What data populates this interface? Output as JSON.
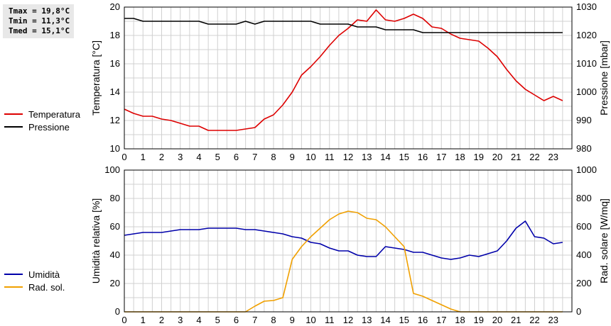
{
  "stats": {
    "tmax": "Tmax = 19,8°C",
    "tmin": "Tmin = 11,3°C",
    "tmed": "Tmed = 15,1°C"
  },
  "chart_data": [
    {
      "type": "line",
      "x_ticks": [
        "0",
        "1",
        "2",
        "3",
        "4",
        "5",
        "6",
        "7",
        "8",
        "9",
        "10",
        "11",
        "12",
        "13",
        "14",
        "15",
        "16",
        "17",
        "18",
        "19",
        "20",
        "21",
        "22",
        "23"
      ],
      "xlim": [
        0,
        24
      ],
      "left_axis": {
        "label": "Temperatura [°C]",
        "ylim": [
          10,
          20
        ],
        "ticks": [
          10,
          12,
          14,
          16,
          18,
          20
        ]
      },
      "right_axis": {
        "label": "Pressione [mbar]",
        "ylim": [
          980,
          1030
        ],
        "ticks": [
          980,
          990,
          1000,
          1010,
          1020,
          1030
        ]
      },
      "grid": true,
      "legend_placement": "left",
      "series": [
        {
          "name": "Temperatura",
          "color": "#dd0000",
          "axis": "left",
          "x": [
            0,
            0.5,
            1,
            1.5,
            2,
            2.5,
            3,
            3.5,
            4,
            4.5,
            5,
            5.5,
            6,
            6.5,
            7,
            7.5,
            8,
            8.5,
            9,
            9.5,
            10,
            10.5,
            11,
            11.5,
            12,
            12.5,
            13,
            13.5,
            14,
            14.5,
            15,
            15.5,
            16,
            16.5,
            17,
            17.5,
            18,
            18.5,
            19,
            19.5,
            20,
            20.5,
            21,
            21.5,
            22,
            22.5,
            23,
            23.5
          ],
          "y": [
            12.8,
            12.5,
            12.3,
            12.3,
            12.1,
            12.0,
            11.8,
            11.6,
            11.6,
            11.3,
            11.3,
            11.3,
            11.3,
            11.4,
            11.5,
            12.1,
            12.4,
            13.1,
            14.0,
            15.2,
            15.8,
            16.5,
            17.3,
            18.0,
            18.5,
            19.1,
            19.0,
            19.8,
            19.1,
            19.0,
            19.2,
            19.5,
            19.2,
            18.6,
            18.5,
            18.1,
            17.8,
            17.7,
            17.6,
            17.1,
            16.5,
            15.6,
            14.8,
            14.2,
            13.8,
            13.4,
            13.7,
            13.4
          ]
        },
        {
          "name": "Pressione",
          "color": "#000000",
          "axis": "right",
          "x": [
            0,
            0.5,
            1,
            1.5,
            2,
            2.5,
            3,
            3.5,
            4,
            4.5,
            5,
            5.5,
            6,
            6.5,
            7,
            7.5,
            8,
            8.5,
            9,
            9.5,
            10,
            10.5,
            11,
            11.5,
            12,
            12.5,
            13,
            13.5,
            14,
            14.5,
            15,
            15.5,
            16,
            16.5,
            17,
            17.5,
            18,
            18.5,
            19,
            19.5,
            20,
            20.5,
            21,
            21.5,
            22,
            22.5,
            23,
            23.5
          ],
          "y": [
            1026,
            1026,
            1025,
            1025,
            1025,
            1025,
            1025,
            1025,
            1025,
            1024,
            1024,
            1024,
            1024,
            1025,
            1024,
            1025,
            1025,
            1025,
            1025,
            1025,
            1025,
            1024,
            1024,
            1024,
            1024,
            1023,
            1023,
            1023,
            1022,
            1022,
            1022,
            1022,
            1021,
            1021,
            1021,
            1021,
            1021,
            1021,
            1021,
            1021,
            1021,
            1021,
            1021,
            1021,
            1021,
            1021,
            1021,
            1021
          ]
        }
      ]
    },
    {
      "type": "line",
      "x_ticks": [
        "0",
        "1",
        "2",
        "3",
        "4",
        "5",
        "6",
        "7",
        "8",
        "9",
        "10",
        "11",
        "12",
        "13",
        "14",
        "15",
        "16",
        "17",
        "18",
        "19",
        "20",
        "21",
        "22",
        "23"
      ],
      "xlim": [
        0,
        24
      ],
      "left_axis": {
        "label": "Umidità relativa [%]",
        "ylim": [
          0,
          100
        ],
        "ticks": [
          0,
          20,
          40,
          60,
          80,
          100
        ]
      },
      "right_axis": {
        "label": "Rad. solare [W/mq]",
        "ylim": [
          0,
          1000
        ],
        "ticks": [
          0,
          200,
          400,
          600,
          800,
          1000
        ]
      },
      "grid": true,
      "legend_placement": "left",
      "series": [
        {
          "name": "Umidità",
          "color": "#0000aa",
          "axis": "left",
          "x": [
            0,
            0.5,
            1,
            1.5,
            2,
            2.5,
            3,
            3.5,
            4,
            4.5,
            5,
            5.5,
            6,
            6.5,
            7,
            7.5,
            8,
            8.5,
            9,
            9.5,
            10,
            10.5,
            11,
            11.5,
            12,
            12.5,
            13,
            13.5,
            14,
            14.5,
            15,
            15.5,
            16,
            16.5,
            17,
            17.5,
            18,
            18.5,
            19,
            19.5,
            20,
            20.5,
            21,
            21.5,
            22,
            22.5,
            23,
            23.5
          ],
          "y": [
            54,
            55,
            56,
            56,
            56,
            57,
            58,
            58,
            58,
            59,
            59,
            59,
            59,
            58,
            58,
            57,
            56,
            55,
            53,
            52,
            49,
            48,
            45,
            43,
            43,
            40,
            39,
            39,
            46,
            45,
            44,
            42,
            42,
            40,
            38,
            37,
            38,
            40,
            39,
            41,
            43,
            50,
            59,
            64,
            53,
            52,
            48,
            49
          ]
        },
        {
          "name": "Rad. sol.",
          "color": "#f0a000",
          "axis": "right",
          "x": [
            0,
            0.5,
            1,
            1.5,
            2,
            2.5,
            3,
            3.5,
            4,
            4.5,
            5,
            5.5,
            6,
            6.5,
            7,
            7.5,
            8,
            8.5,
            9,
            9.5,
            10,
            10.5,
            11,
            11.5,
            12,
            12.5,
            13,
            13.5,
            14,
            14.5,
            15,
            15.5,
            16,
            16.5,
            17,
            17.5,
            18,
            18.5,
            19,
            19.5,
            20,
            20.5,
            21,
            21.5,
            22,
            22.5,
            23,
            23.5
          ],
          "y": [
            0,
            0,
            0,
            0,
            0,
            0,
            0,
            0,
            0,
            0,
            0,
            0,
            0,
            0,
            40,
            75,
            80,
            100,
            370,
            460,
            530,
            590,
            650,
            690,
            710,
            700,
            660,
            650,
            600,
            530,
            460,
            130,
            110,
            80,
            50,
            20,
            0,
            0,
            0,
            0,
            0,
            0,
            0,
            0,
            0,
            0,
            0,
            0
          ]
        }
      ]
    }
  ]
}
